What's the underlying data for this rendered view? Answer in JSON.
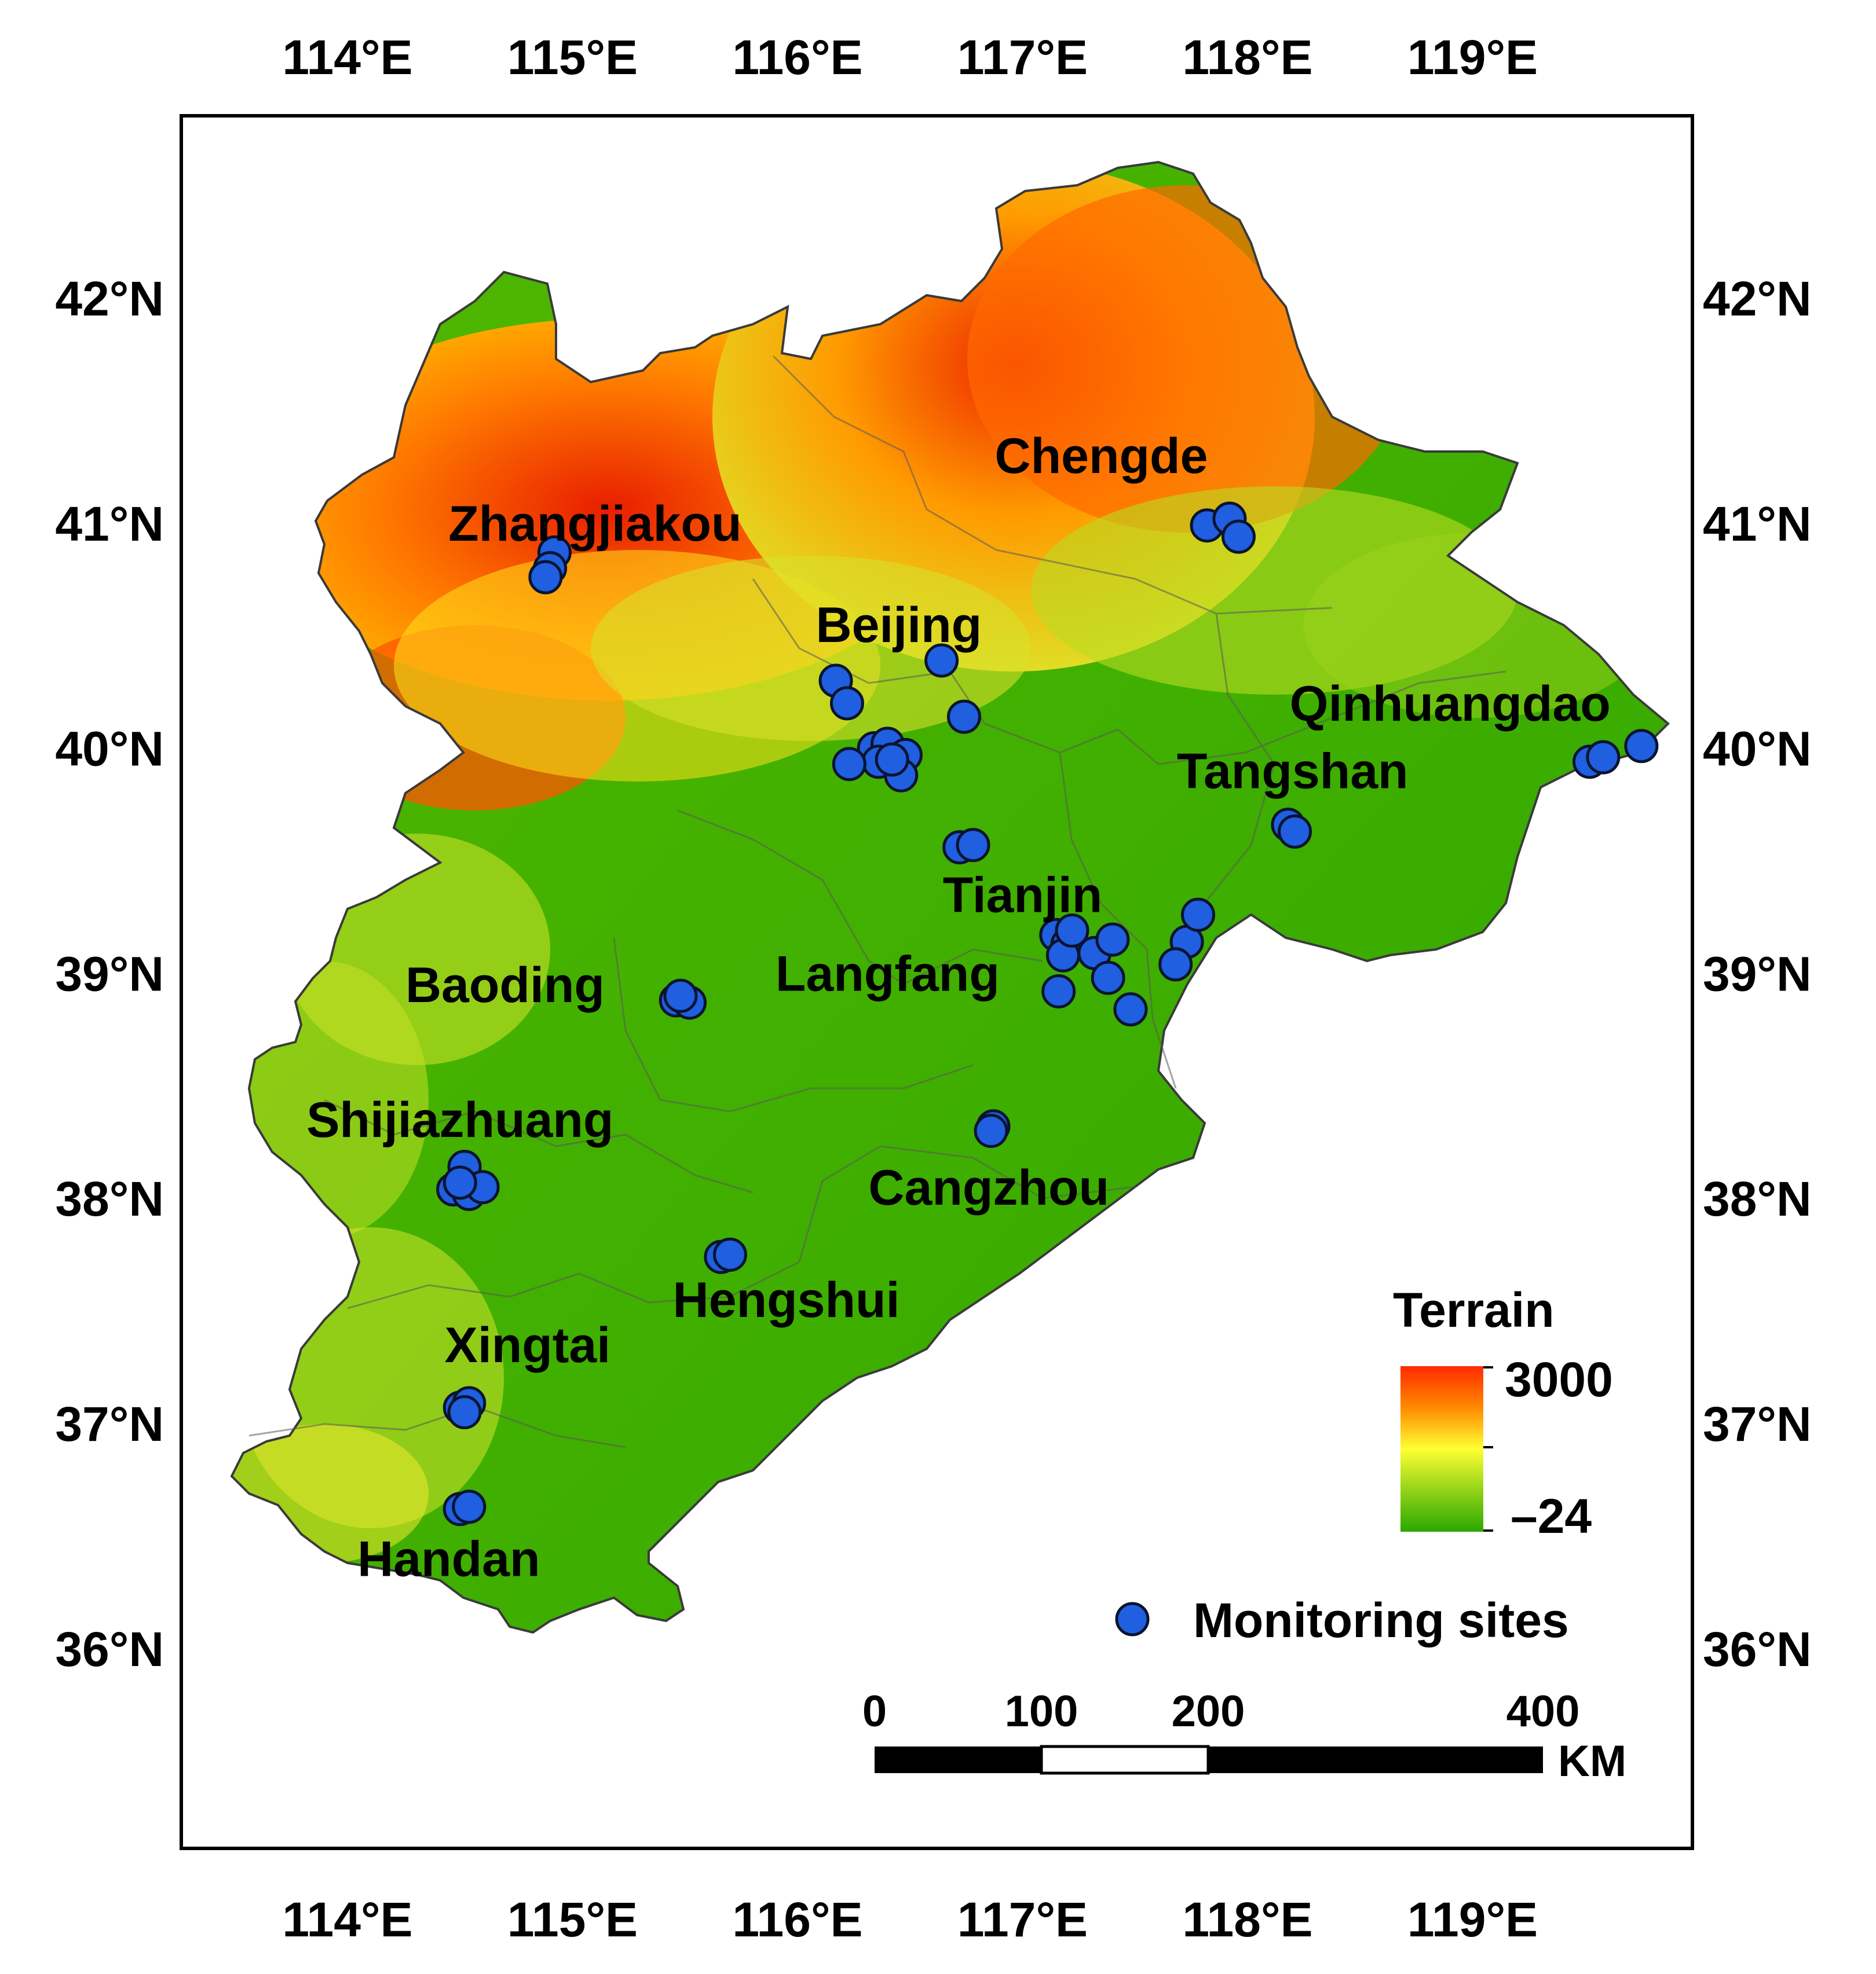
{
  "axes": {
    "lon_ticks": [
      "114°E",
      "115°E",
      "116°E",
      "117°E",
      "118°E",
      "119°E"
    ],
    "lat_ticks": [
      "42°N",
      "41°N",
      "40°N",
      "39°N",
      "38°N",
      "37°N",
      "36°N"
    ]
  },
  "cities": [
    {
      "name": "Zhangjiakou",
      "lon": 115.1,
      "lat": 41.0
    },
    {
      "name": "Chengde",
      "lon": 117.35,
      "lat": 41.3
    },
    {
      "name": "Beijing",
      "lon": 116.45,
      "lat": 40.55
    },
    {
      "name": "Qinhuangdao",
      "lon": 118.9,
      "lat": 40.2
    },
    {
      "name": "Tangshan",
      "lon": 118.2,
      "lat": 39.9
    },
    {
      "name": "Tianjin",
      "lon": 117.0,
      "lat": 39.35
    },
    {
      "name": "Langfang",
      "lon": 116.4,
      "lat": 39.0
    },
    {
      "name": "Baoding",
      "lon": 114.7,
      "lat": 38.95
    },
    {
      "name": "Shijiazhuang",
      "lon": 114.5,
      "lat": 38.35
    },
    {
      "name": "Cangzhou",
      "lon": 116.85,
      "lat": 38.05
    },
    {
      "name": "Hengshui",
      "lon": 115.95,
      "lat": 37.55
    },
    {
      "name": "Xingtai",
      "lon": 114.8,
      "lat": 37.35
    },
    {
      "name": "Handan",
      "lon": 114.45,
      "lat": 36.4
    }
  ],
  "monitoring_sites": [
    [
      114.92,
      40.87
    ],
    [
      114.9,
      40.8
    ],
    [
      114.88,
      40.76
    ],
    [
      117.82,
      40.99
    ],
    [
      117.92,
      41.02
    ],
    [
      117.96,
      40.94
    ],
    [
      116.64,
      40.39
    ],
    [
      116.17,
      40.3
    ],
    [
      116.22,
      40.2
    ],
    [
      116.74,
      40.14
    ],
    [
      116.34,
      40.0
    ],
    [
      116.4,
      40.02
    ],
    [
      116.48,
      39.97
    ],
    [
      116.36,
      39.94
    ],
    [
      116.23,
      39.93
    ],
    [
      116.46,
      39.88
    ],
    [
      116.42,
      39.95
    ],
    [
      116.72,
      39.56
    ],
    [
      116.78,
      39.57
    ],
    [
      118.18,
      39.66
    ],
    [
      118.21,
      39.63
    ],
    [
      119.52,
      39.94
    ],
    [
      119.58,
      39.96
    ],
    [
      119.75,
      40.01
    ],
    [
      117.15,
      39.17
    ],
    [
      117.2,
      39.13
    ],
    [
      117.18,
      39.08
    ],
    [
      117.22,
      39.19
    ],
    [
      117.32,
      39.09
    ],
    [
      117.4,
      39.15
    ],
    [
      117.38,
      38.98
    ],
    [
      117.16,
      38.92
    ],
    [
      117.48,
      38.84
    ],
    [
      117.73,
      39.14
    ],
    [
      117.78,
      39.26
    ],
    [
      117.68,
      39.04
    ],
    [
      115.46,
      38.88
    ],
    [
      115.52,
      38.87
    ],
    [
      115.48,
      38.9
    ],
    [
      116.87,
      38.32
    ],
    [
      116.86,
      38.3
    ],
    [
      114.52,
      38.14
    ],
    [
      114.47,
      38.04
    ],
    [
      114.54,
      38.02
    ],
    [
      114.6,
      38.05
    ],
    [
      114.5,
      38.07
    ],
    [
      115.66,
      37.74
    ],
    [
      115.7,
      37.75
    ],
    [
      114.5,
      37.07
    ],
    [
      114.54,
      37.09
    ],
    [
      114.52,
      37.05
    ],
    [
      114.5,
      36.62
    ],
    [
      114.54,
      36.63
    ]
  ],
  "legend": {
    "title": "Terrain",
    "max": "3000",
    "min": "–24",
    "sites_label": "Monitoring sites",
    "site_color": "#1f5fe0"
  },
  "scale_bar": {
    "labels": [
      "0",
      "100",
      "200",
      "400"
    ],
    "unit": "KM"
  }
}
